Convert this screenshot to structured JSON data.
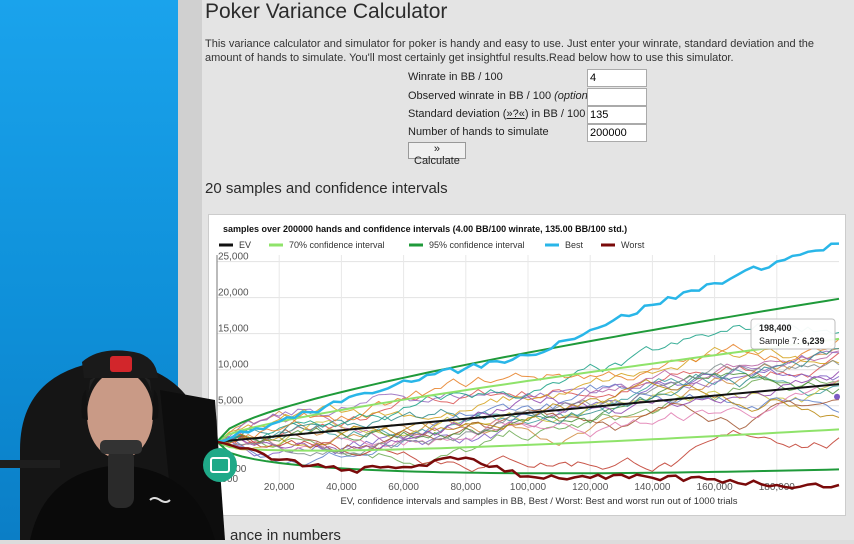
{
  "page": {
    "title": "Poker Variance Calculator",
    "intro": "This variance calculator and simulator for poker is handy and easy to use. Just enter your winrate, standard deviation and the amount of hands to simulate. You'll most certainly get insightful results.Read below how to use this simulator.",
    "section_heading": "20 samples and confidence intervals",
    "next_heading": "ance in numbers"
  },
  "form": {
    "winrate": {
      "label": "Winrate in BB / 100",
      "value": "4"
    },
    "observed": {
      "label": "Observed winrate in BB / 100",
      "label_note": "(optional)",
      "value": ""
    },
    "stddev": {
      "label_pre": "Standard deviation (",
      "link": "»?«",
      "label_post": ") in BB / 100",
      "value": "135"
    },
    "hands": {
      "label": "Number of hands to simulate",
      "value": "200000"
    },
    "calculate_label": "» Calculate"
  },
  "chart_data": {
    "type": "line",
    "title": "samples over 200000 hands and confidence intervals (4.00 BB/100 winrate, 135.00 BB/100 std.)",
    "xlabel": "EV, confidence intervals and samples in BB, Best / Worst: Best and worst run out of 1000 trials",
    "ylabel": "",
    "xlim": [
      0,
      200000
    ],
    "ylim": [
      -6000,
      28000
    ],
    "x_ticks": [
      "20,000",
      "40,000",
      "60,000",
      "80,000",
      "100,000",
      "120,000",
      "140,000",
      "160,000",
      "180,000"
    ],
    "x_tick_values": [
      20000,
      40000,
      60000,
      80000,
      100000,
      120000,
      140000,
      160000,
      180000
    ],
    "y_ticks": [
      "25,000",
      "20,000",
      "15,000",
      "10,000",
      "5,000"
    ],
    "y_tick_values": [
      25000,
      20000,
      15000,
      10000,
      5000
    ],
    "y_partial_labels": [
      "75",
      "-5,000",
      "-000"
    ],
    "legend": [
      {
        "name": "EV",
        "color": "#111111"
      },
      {
        "name": "70% confidence interval",
        "color": "#8fe36a"
      },
      {
        "name": "95% confidence interval",
        "color": "#1f9a3a"
      },
      {
        "name": "Best",
        "color": "#29b6e8"
      },
      {
        "name": "Worst",
        "color": "#7a0a0a"
      }
    ],
    "tooltip": {
      "x": "198,400",
      "label": "Sample 7:",
      "value": "6,239"
    },
    "series": [
      {
        "name": "EV",
        "x": [
          0,
          200000
        ],
        "values": [
          0,
          8000
        ]
      },
      {
        "name": "Best",
        "x": [
          0,
          20000,
          40000,
          60000,
          80000,
          100000,
          120000,
          140000,
          160000,
          180000,
          200000
        ],
        "values": [
          0,
          2800,
          5500,
          8500,
          10200,
          12000,
          15500,
          19000,
          22000,
          25000,
          27500
        ]
      },
      {
        "name": "Worst",
        "x": [
          0,
          20000,
          40000,
          60000,
          80000,
          100000,
          120000,
          140000,
          160000,
          180000,
          200000
        ],
        "values": [
          0,
          -2500,
          -4000,
          -3500,
          -2200,
          -4800,
          -5000,
          -5000,
          -5200,
          -6000,
          -6000
        ]
      }
    ]
  },
  "colors": {
    "accent": "#1f9a3a",
    "best": "#29b6e8",
    "worst": "#7a0a0a",
    "desktop": "#1aa3ec"
  },
  "icons": {
    "chat": "chat-bubble-icon",
    "cap_logo": "cap-logo-icon",
    "shirt_logo": "champion-logo-icon"
  }
}
